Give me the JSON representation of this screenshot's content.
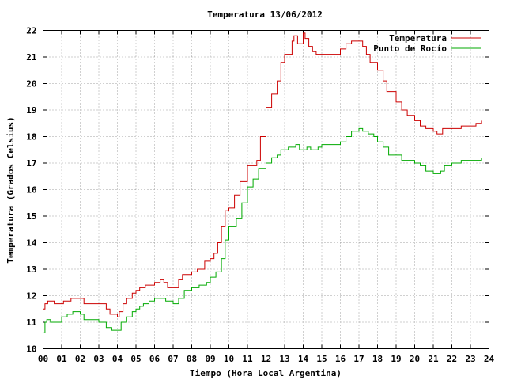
{
  "chart_data": {
    "type": "line",
    "title": "Temperatura 13/06/2012",
    "xlabel": "Tiempo (Hora Local Argentina)",
    "ylabel": "Temperatura (Grados Celsius)",
    "xlim": [
      0,
      24
    ],
    "ylim": [
      10,
      22
    ],
    "x_ticks": [
      "00",
      "01",
      "02",
      "03",
      "04",
      "05",
      "06",
      "07",
      "08",
      "09",
      "10",
      "11",
      "12",
      "13",
      "14",
      "15",
      "16",
      "17",
      "18",
      "19",
      "20",
      "21",
      "22",
      "23",
      "24"
    ],
    "y_ticks": [
      10,
      11,
      12,
      13,
      14,
      15,
      16,
      17,
      18,
      19,
      20,
      21,
      22
    ],
    "grid": true,
    "legend_position": "top-right",
    "series": [
      {
        "name": "Temperatura",
        "color": "#cc0000",
        "x": [
          0.0,
          0.1,
          0.25,
          0.6,
          1.1,
          1.5,
          2.0,
          2.2,
          3.0,
          3.4,
          3.6,
          3.9,
          4.0,
          4.1,
          4.3,
          4.5,
          4.8,
          5.0,
          5.2,
          5.5,
          6.0,
          6.3,
          6.5,
          6.7,
          7.0,
          7.3,
          7.5,
          7.8,
          8.0,
          8.3,
          8.7,
          9.0,
          9.2,
          9.4,
          9.6,
          9.8,
          10.0,
          10.3,
          10.6,
          11.0,
          11.5,
          11.7,
          12.0,
          12.3,
          12.6,
          12.8,
          13.0,
          13.2,
          13.4,
          13.5,
          13.7,
          14.0,
          14.1,
          14.3,
          14.5,
          14.7,
          15.0,
          15.5,
          16.0,
          16.3,
          16.6,
          17.0,
          17.2,
          17.4,
          17.6,
          17.9,
          18.0,
          18.3,
          18.5,
          18.8,
          19.0,
          19.3,
          19.6,
          20.0,
          20.3,
          20.6,
          21.0,
          21.2,
          21.5,
          22.0,
          22.5,
          23.0,
          23.3,
          23.6
        ],
        "y": [
          11.5,
          11.7,
          11.8,
          11.7,
          11.8,
          11.9,
          11.9,
          11.7,
          11.7,
          11.5,
          11.3,
          11.3,
          11.2,
          11.4,
          11.7,
          11.9,
          12.1,
          12.2,
          12.3,
          12.4,
          12.5,
          12.6,
          12.5,
          12.3,
          12.3,
          12.6,
          12.8,
          12.8,
          12.9,
          13.0,
          13.3,
          13.4,
          13.6,
          14.0,
          14.6,
          15.2,
          15.3,
          15.8,
          16.3,
          16.9,
          17.1,
          18.0,
          19.1,
          19.6,
          20.1,
          20.8,
          21.1,
          21.1,
          21.6,
          21.8,
          21.5,
          21.9,
          21.7,
          21.4,
          21.2,
          21.1,
          21.1,
          21.1,
          21.3,
          21.5,
          21.6,
          21.6,
          21.4,
          21.1,
          20.8,
          20.8,
          20.5,
          20.1,
          19.7,
          19.7,
          19.3,
          19.0,
          18.8,
          18.6,
          18.4,
          18.3,
          18.2,
          18.1,
          18.3,
          18.3,
          18.4,
          18.4,
          18.5,
          18.6
        ]
      },
      {
        "name": "Punto de Rocío",
        "color": "#00aa00",
        "x": [
          0.0,
          0.1,
          0.2,
          0.4,
          0.6,
          1.0,
          1.3,
          1.6,
          2.0,
          2.2,
          2.6,
          3.0,
          3.4,
          3.7,
          4.0,
          4.2,
          4.5,
          4.8,
          5.0,
          5.2,
          5.4,
          5.7,
          6.0,
          6.3,
          6.6,
          7.0,
          7.3,
          7.6,
          8.0,
          8.4,
          8.8,
          9.0,
          9.3,
          9.6,
          9.8,
          10.0,
          10.4,
          10.7,
          11.0,
          11.3,
          11.6,
          12.0,
          12.3,
          12.6,
          12.8,
          13.0,
          13.2,
          13.4,
          13.6,
          13.8,
          14.0,
          14.2,
          14.4,
          14.6,
          14.8,
          15.0,
          15.5,
          16.0,
          16.3,
          16.6,
          17.0,
          17.2,
          17.5,
          17.8,
          18.0,
          18.3,
          18.6,
          19.0,
          19.3,
          19.6,
          20.0,
          20.3,
          20.6,
          21.0,
          21.2,
          21.4,
          21.6,
          22.0,
          22.5,
          23.0,
          23.3,
          23.6
        ],
        "y": [
          10.6,
          11.0,
          11.1,
          11.0,
          11.0,
          11.2,
          11.3,
          11.4,
          11.3,
          11.1,
          11.1,
          11.0,
          10.8,
          10.7,
          10.7,
          11.0,
          11.2,
          11.4,
          11.5,
          11.6,
          11.7,
          11.8,
          11.9,
          11.9,
          11.8,
          11.7,
          11.9,
          12.2,
          12.3,
          12.4,
          12.5,
          12.7,
          12.9,
          13.4,
          14.1,
          14.6,
          14.9,
          15.5,
          16.1,
          16.4,
          16.8,
          17.0,
          17.2,
          17.3,
          17.5,
          17.5,
          17.6,
          17.6,
          17.7,
          17.5,
          17.5,
          17.6,
          17.5,
          17.5,
          17.6,
          17.7,
          17.7,
          17.8,
          18.0,
          18.2,
          18.3,
          18.2,
          18.1,
          18.0,
          17.8,
          17.6,
          17.3,
          17.3,
          17.1,
          17.1,
          17.0,
          16.9,
          16.7,
          16.6,
          16.6,
          16.7,
          16.9,
          17.0,
          17.1,
          17.1,
          17.1,
          17.2
        ]
      }
    ]
  }
}
